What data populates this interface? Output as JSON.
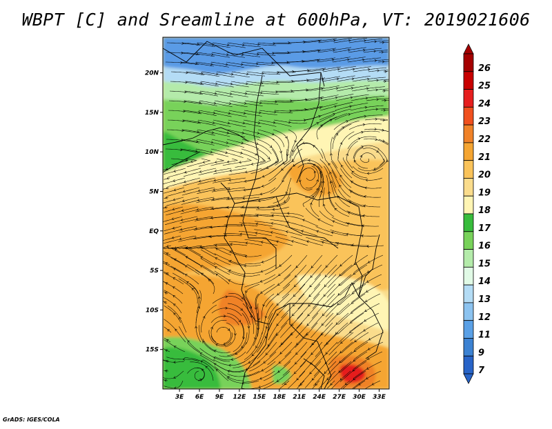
{
  "title": "WBPT [C] and Sreamline at 600hPa, VT: 2019021606",
  "footer": "GrADS: IGES/COLA",
  "map": {
    "lat_labels": [
      "20N",
      "15N",
      "10N",
      "5N",
      "EQ",
      "5S",
      "10S",
      "15S"
    ],
    "lat_values": [
      20,
      15,
      10,
      5,
      0,
      -5,
      -10,
      -15
    ],
    "lon_labels": [
      "3E",
      "6E",
      "9E",
      "12E",
      "15E",
      "18E",
      "21E",
      "24E",
      "27E",
      "30E",
      "33E"
    ],
    "lon_values": [
      3,
      6,
      9,
      12,
      15,
      18,
      21,
      24,
      27,
      30,
      33
    ],
    "lon_range": [
      0.5,
      34.5
    ],
    "lat_range": [
      -20,
      24.5
    ]
  },
  "colorbar": {
    "labels": [
      "26",
      "25",
      "24",
      "23",
      "22",
      "21",
      "20",
      "19",
      "18",
      "17",
      "16",
      "15",
      "14",
      "13",
      "12",
      "11",
      "9",
      "7"
    ],
    "colors": [
      "#a50000",
      "#c80000",
      "#e61e1e",
      "#f0501e",
      "#f08228",
      "#f5a532",
      "#fac35a",
      "#fadc8c",
      "#fff5b4",
      "#38bc3c",
      "#78d25a",
      "#b4ebaa",
      "#e1fae6",
      "#b4dcf5",
      "#8cc3f0",
      "#5aa0e6",
      "#3c82d2",
      "#2864c8"
    ],
    "top_color": "#a50000",
    "bottom_color": "#2864c8"
  },
  "colors": {
    "blue_cold": "#5a9be6",
    "lightblue": "#b4dcf5",
    "palegreen": "#b4ebaa",
    "green": "#78d25a",
    "darkgreen": "#38bc3c",
    "paleyellow": "#fff5b4",
    "yellow": "#fadc8c",
    "lightorange": "#fac35a",
    "orange": "#f5a532",
    "deeporange": "#f08228",
    "red": "#e61e1e"
  }
}
